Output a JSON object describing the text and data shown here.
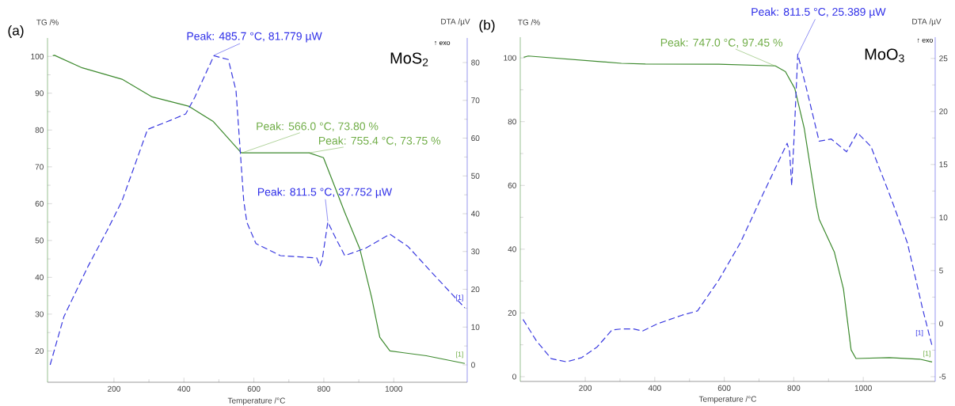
{
  "chart_data": [
    {
      "type": "line",
      "title": "(a)",
      "xlabel": "Temperature /°C",
      "ylabel": "TG /%",
      "y2label": "DTA /µV",
      "xlim": [
        10,
        1210
      ],
      "xticks": [
        200,
        400,
        600,
        800,
        1000
      ],
      "ylim": [
        11.5,
        105
      ],
      "yticks": [
        20,
        30,
        40,
        50,
        60,
        70,
        80,
        90,
        100
      ],
      "y2lim": [
        -4.6,
        86.5
      ],
      "y2ticks": [
        0,
        10,
        20,
        30,
        40,
        50,
        60,
        70,
        80
      ],
      "series": [
        {
          "color": "#3d8a2e",
          "line_style": "solid",
          "x": [
            25,
            30,
            109,
            223,
            309,
            413,
            483,
            563,
            566,
            758,
            799,
            833,
            860,
            903,
            937,
            960,
            989,
            1093,
            1203
          ],
          "values": [
            100.2,
            100.3,
            96.9,
            93.8,
            89.0,
            86.5,
            82.4,
            73.9,
            73.8,
            73.8,
            72.5,
            64.2,
            57.6,
            47.7,
            34.4,
            23.7,
            20.0,
            18.7,
            16.6
          ]
        },
        {
          "color": "#3a3ae0",
          "line_style": "dashed",
          "axis": "y2",
          "x": [
            17.5,
            57,
            126,
            179,
            223,
            296,
            361,
            405,
            431,
            485.7,
            527,
            549,
            571,
            580,
            606,
            676,
            780,
            789,
            795,
            811.5,
            833,
            860,
            920,
            989,
            1041,
            1112,
            1203
          ],
          "values": [
            0.0,
            12.8,
            26.1,
            35.3,
            43.4,
            62.3,
            64.7,
            66.4,
            70.8,
            81.8,
            80.8,
            72.5,
            43.4,
            37.7,
            32.1,
            28.9,
            28.3,
            26.1,
            27.6,
            37.8,
            33.7,
            28.9,
            30.9,
            34.6,
            31.3,
            24.1,
            15.1
          ]
        }
      ],
      "annotations": [
        {
          "text": "Peak: 485.7 °C, 81.779 µW",
          "x": 485.7,
          "y": 100.3
        },
        {
          "text": "Peak: 566.0 °C, 73.80 %",
          "x": 566.0,
          "y": 73.8
        },
        {
          "text": "Peak: 755.4 °C, 73.75 %",
          "x": 755.4,
          "y": 73.75
        },
        {
          "text": "Peak: 811.5 °C, 37.752 µW",
          "x": 811.5,
          "y": 55.2
        },
        "MoS$_{2}$",
        "↑ exo",
        "[1]",
        "[1]"
      ]
    },
    {
      "type": "line",
      "title": "(b)",
      "xlabel": "Temperature /°C",
      "ylabel": "TG /%",
      "y2label": "DTA /µV",
      "xlim": [
        13,
        1207
      ],
      "xticks": [
        200,
        400,
        600,
        800,
        1000
      ],
      "ylim": [
        -1.5,
        106.5
      ],
      "yticks": [
        0,
        20,
        40,
        60,
        80,
        100
      ],
      "y2lim": [
        -5.45,
        27
      ],
      "y2ticks": [
        -5,
        0,
        5,
        10,
        15,
        20,
        25
      ],
      "series": [
        {
          "color": "#3d8a2e",
          "line_style": "solid",
          "x": [
            23,
            36,
            304,
            373,
            584,
            747,
            776,
            803,
            830,
            865,
            873,
            917,
            943,
            965,
            979,
            1075,
            1162,
            1198
          ],
          "values": [
            100.2,
            100.6,
            98.3,
            98.1,
            98.0,
            97.5,
            95.7,
            90.4,
            78.0,
            53.7,
            49.4,
            39.0,
            27.5,
            8.4,
            5.7,
            6.0,
            5.5,
            4.6
          ]
        },
        {
          "color": "#3a3ae0",
          "line_style": "dashed",
          "axis": "y2",
          "x": [
            21,
            59,
            102,
            146,
            190,
            234,
            277,
            304,
            339,
            365,
            409,
            479,
            523,
            584,
            646,
            707,
            781,
            788,
            794,
            801,
            811.5,
            834,
            873,
            908,
            952,
            983,
            1022,
            1079,
            1127,
            1170,
            1198
          ],
          "values": [
            0.4,
            -1.6,
            -3.3,
            -3.6,
            -3.2,
            -2.2,
            -0.6,
            -0.5,
            -0.5,
            -0.7,
            0.0,
            0.8,
            1.2,
            4.1,
            7.6,
            11.9,
            17.0,
            16.2,
            13.0,
            17.6,
            25.4,
            22.5,
            17.2,
            17.4,
            16.2,
            18.0,
            16.7,
            11.9,
            7.6,
            1.5,
            -2.1
          ]
        }
      ],
      "annotations": [
        {
          "text": "Peak: 747.0 °C, 97.45 %",
          "x": 747.0,
          "y": 97.45
        },
        {
          "text": "Peak: 811.5 °C, 25.389 µW",
          "x": 811.5,
          "y": 101.0
        },
        "MoO$_{3}$",
        "↑ exo",
        "[1]",
        "[1]"
      ]
    }
  ]
}
